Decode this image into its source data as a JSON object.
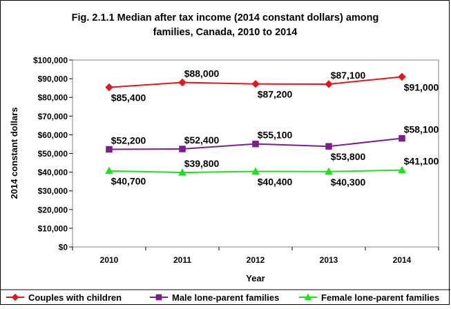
{
  "chart_data": {
    "type": "line",
    "title": "Fig. 2.1.1 Median after tax income (2014 constant dollars) among families, Canada, 2010 to 2014",
    "title_lines": [
      "Fig. 2.1.1 Median after tax income (2014 constant dollars) among",
      "families, Canada, 2010 to 2014"
    ],
    "xlabel": "Year",
    "ylabel": "2014 constant dollars",
    "x": [
      "2010",
      "2011",
      "2012",
      "2013",
      "2014"
    ],
    "ylim": [
      0,
      100000
    ],
    "yticks": [
      0,
      10000,
      20000,
      30000,
      40000,
      50000,
      60000,
      70000,
      80000,
      90000,
      100000
    ],
    "ytick_labels": [
      "$0",
      "$10,000",
      "$20,000",
      "$30,000",
      "$40,000",
      "$50,000",
      "$60,000",
      "$70,000",
      "$80,000",
      "$90,000",
      "$100,000"
    ],
    "grid": false,
    "plot_background": "#ffffff",
    "legend_position": "bottom",
    "series": [
      {
        "name": "Couples with children",
        "color": "#e8141b",
        "marker": "diamond",
        "values": [
          85400,
          88000,
          87200,
          87100,
          91000
        ],
        "labels": [
          "$85,400",
          "$88,000",
          "$87,200",
          "$87,100",
          "$91,000"
        ],
        "label_side": [
          "below",
          "above",
          "below",
          "above",
          "below"
        ]
      },
      {
        "name": "Male lone-parent families",
        "color": "#7b1e8c",
        "marker": "square",
        "values": [
          52200,
          52400,
          55100,
          53800,
          58100
        ],
        "labels": [
          "$52,200",
          "$52,400",
          "$55,100",
          "$53,800",
          "$58,100"
        ],
        "label_side": [
          "above",
          "above",
          "above",
          "below",
          "above"
        ]
      },
      {
        "name": "Female lone-parent families",
        "color": "#1fe01f",
        "marker": "triangle",
        "values": [
          40700,
          39800,
          40400,
          40300,
          41100
        ],
        "labels": [
          "$40,700",
          "$39,800",
          "$40,400",
          "$40,300",
          "$41,100"
        ],
        "label_side": [
          "below",
          "above",
          "below",
          "below",
          "above"
        ]
      }
    ]
  }
}
